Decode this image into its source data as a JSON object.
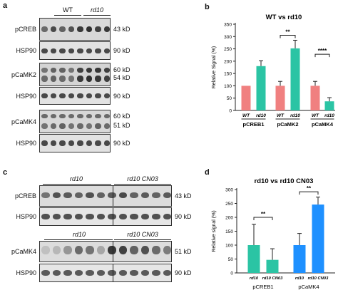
{
  "panels": {
    "a": {
      "label": "a",
      "groups": [
        "WT",
        "rd10"
      ],
      "blots": [
        {
          "name": "pCREB",
          "kd": [
            "43 kD"
          ]
        },
        {
          "name": "HSP90",
          "kd": [
            "90 kD"
          ]
        },
        {
          "name": "pCaMK2",
          "kd": [
            "60 kD",
            "54 kD"
          ]
        },
        {
          "name": "HSP90",
          "kd": [
            "90 kD"
          ]
        },
        {
          "name": "pCaMK4",
          "kd": [
            "60 kD",
            "51 kD"
          ]
        },
        {
          "name": "HSP90",
          "kd": [
            "90 kD"
          ]
        }
      ]
    },
    "c": {
      "label": "c",
      "groups_top": [
        "rd10",
        "rd10 CN03"
      ],
      "groups_bottom": [
        "rd10",
        "rd10 CN03"
      ],
      "blots": [
        {
          "name": "pCREB",
          "kd": [
            "43 kD"
          ]
        },
        {
          "name": "HSP90",
          "kd": [
            "90 kD"
          ]
        },
        {
          "name": "pCaMK4",
          "kd": [
            "51 kD"
          ]
        },
        {
          "name": "HSP90",
          "kd": [
            "90 kD"
          ]
        }
      ]
    }
  },
  "chart_data": [
    {
      "panel": "b",
      "type": "bar",
      "title": "WT vs rd10",
      "ylabel": "Relative Signal (%)",
      "ylim": [
        0,
        350
      ],
      "yticks": [
        0,
        50,
        100,
        150,
        200,
        250,
        300,
        350
      ],
      "categories": [
        "WT",
        "rd10",
        "WT",
        "rd10",
        "WT",
        "rd10"
      ],
      "groups": [
        "pCREB1",
        "pCaMK2",
        "pCaMK4"
      ],
      "values": [
        100,
        180,
        100,
        252,
        100,
        37
      ],
      "errors": [
        0,
        22,
        18,
        33,
        18,
        15
      ],
      "colors": [
        "#f08080",
        "#2bc4a4",
        "#f08080",
        "#2bc4a4",
        "#f08080",
        "#2bc4a4"
      ],
      "significance": [
        "**",
        "****"
      ]
    },
    {
      "panel": "d",
      "type": "bar",
      "title": "rd10 vs rd10 CN03",
      "ylabel": "Relative signal (%)",
      "ylim": [
        0,
        300
      ],
      "yticks": [
        0,
        50,
        100,
        150,
        200,
        250,
        300
      ],
      "categories": [
        "rd10",
        "rd10 CN03",
        "rd10",
        "rd10 CN03"
      ],
      "groups": [
        "pCREB1",
        "pCaMK4"
      ],
      "values": [
        100,
        47,
        100,
        246
      ],
      "errors": [
        75,
        40,
        42,
        27
      ],
      "colors": [
        "#2bc4a4",
        "#2bc4a4",
        "#1e90ff",
        "#1e90ff"
      ],
      "significance": [
        "**",
        "**"
      ]
    }
  ],
  "colors": {
    "wt": "#f08080",
    "rd10": "#2bc4a4",
    "cn03": "#1e90ff"
  }
}
